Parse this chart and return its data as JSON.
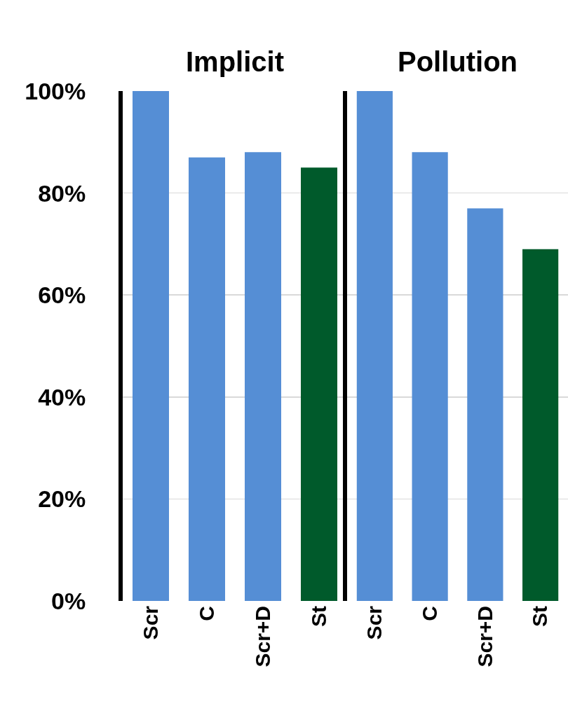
{
  "chart_data": [
    {
      "type": "bar",
      "title": "Implicit",
      "categories": [
        "Scr",
        "C",
        "Scr+D",
        "St"
      ],
      "values": [
        100,
        87,
        88,
        85
      ],
      "colors": [
        "#558ed5",
        "#558ed5",
        "#558ed5",
        "#005a2b"
      ],
      "ylim": [
        0,
        100
      ],
      "yticks": [
        {
          "value": 0,
          "label": "0%"
        },
        {
          "value": 20,
          "label": "20%"
        },
        {
          "value": 40,
          "label": "40%"
        },
        {
          "value": 60,
          "label": "60%"
        },
        {
          "value": 80,
          "label": "80%"
        },
        {
          "value": 100,
          "label": "100%"
        }
      ],
      "grid": "y"
    },
    {
      "type": "bar",
      "title": "Pollution",
      "categories": [
        "Scr",
        "C",
        "Scr+D",
        "St"
      ],
      "values": [
        100,
        88,
        77,
        69
      ],
      "colors": [
        "#558ed5",
        "#558ed5",
        "#558ed5",
        "#005a2b"
      ],
      "ylim": [
        0,
        100
      ],
      "yticks": [
        {
          "value": 0,
          "label": null
        },
        {
          "value": 20,
          "label": null
        },
        {
          "value": 40,
          "label": null
        },
        {
          "value": 60,
          "label": null
        },
        {
          "value": 80,
          "label": null
        },
        {
          "value": 100,
          "label": null
        }
      ],
      "grid": "y",
      "tick_labels": "x"
    }
  ]
}
